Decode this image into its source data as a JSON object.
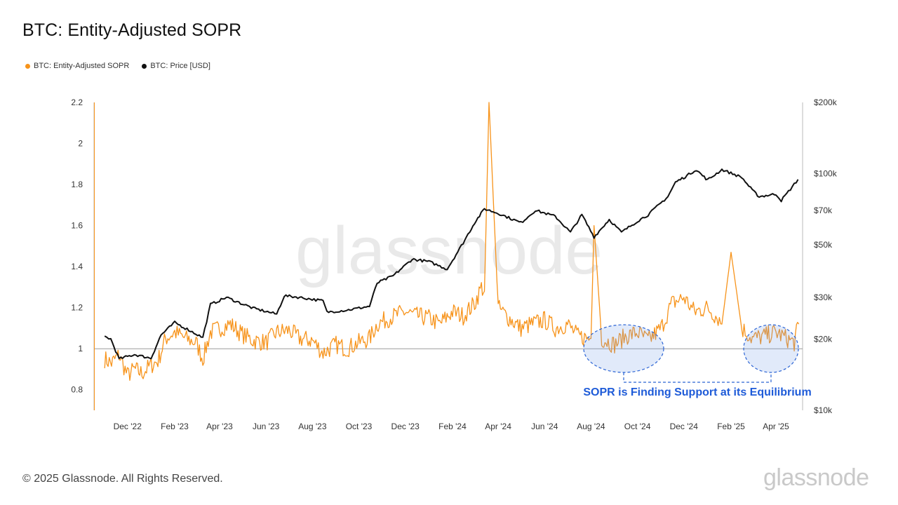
{
  "title": "BTC: Entity-Adjusted SOPR",
  "legend": [
    {
      "label": "BTC: Entity-Adjusted SOPR",
      "color": "#f7931a"
    },
    {
      "label": "BTC: Price [USD]",
      "color": "#111111"
    }
  ],
  "watermark": "glassnode",
  "annotation": "SOPR is Finding Support at its Equilibrium",
  "footer": "© 2025 Glassnode. All Rights Reserved.",
  "brand": "glassnode",
  "chart_data": {
    "type": "line",
    "title": "BTC: Entity-Adjusted SOPR",
    "x_ticks": [
      "Dec '22",
      "Feb '23",
      "Apr '23",
      "Jun '23",
      "Aug '23",
      "Oct '23",
      "Dec '23",
      "Feb '24",
      "Apr '24",
      "Jun '24",
      "Aug '24",
      "Oct '24",
      "Dec '24",
      "Feb '25",
      "Apr '25"
    ],
    "y_left": {
      "ticks": [
        "2.2",
        "2",
        "1.8",
        "1.6",
        "1.4",
        "1.2",
        "1",
        "0.8"
      ],
      "ylim": [
        0.7,
        2.2
      ],
      "reference_line": 1
    },
    "y_right": {
      "scale": "log",
      "ticks": [
        "$200k",
        "$100k",
        "$70k",
        "$50k",
        "$30k",
        "$20k",
        "$10k"
      ],
      "ylim": [
        10000,
        200000
      ]
    },
    "grid": false,
    "legend_position": "top-left",
    "series": [
      {
        "name": "BTC: Entity-Adjusted SOPR",
        "axis": "left",
        "color": "#f7931a",
        "x": [
          "2022-11-01",
          "2022-11-10",
          "2022-11-20",
          "2022-12-01",
          "2022-12-10",
          "2022-12-20",
          "2023-01-01",
          "2023-01-10",
          "2023-01-20",
          "2023-02-01",
          "2023-02-15",
          "2023-03-01",
          "2023-03-10",
          "2023-03-20",
          "2023-04-01",
          "2023-04-15",
          "2023-05-01",
          "2023-05-15",
          "2023-06-01",
          "2023-06-15",
          "2023-07-01",
          "2023-07-15",
          "2023-08-01",
          "2023-08-15",
          "2023-09-01",
          "2023-09-15",
          "2023-10-01",
          "2023-10-15",
          "2023-10-25",
          "2023-11-10",
          "2023-12-01",
          "2023-12-15",
          "2024-01-01",
          "2024-01-15",
          "2024-02-01",
          "2024-02-15",
          "2024-03-01",
          "2024-03-10",
          "2024-03-14",
          "2024-03-20",
          "2024-04-01",
          "2024-04-15",
          "2024-05-01",
          "2024-05-15",
          "2024-06-01",
          "2024-06-15",
          "2024-07-01",
          "2024-07-15",
          "2024-08-01",
          "2024-08-05",
          "2024-08-15",
          "2024-09-01",
          "2024-09-15",
          "2024-10-01",
          "2024-10-15",
          "2024-11-01",
          "2024-11-15",
          "2024-12-01",
          "2024-12-15",
          "2025-01-01",
          "2025-01-15",
          "2025-01-20",
          "2025-02-01",
          "2025-02-15",
          "2025-03-01",
          "2025-03-15",
          "2025-04-01",
          "2025-04-15",
          "2025-04-25",
          "2025-05-01"
        ],
        "y": [
          0.95,
          0.93,
          0.97,
          0.87,
          0.9,
          0.88,
          0.92,
          0.94,
          1.05,
          1.08,
          1.05,
          1.03,
          0.95,
          1.08,
          1.1,
          1.12,
          1.07,
          1.04,
          1.03,
          1.08,
          1.09,
          1.05,
          1.04,
          0.98,
          1.02,
          1.0,
          1.03,
          1.05,
          1.12,
          1.15,
          1.18,
          1.16,
          1.15,
          1.12,
          1.18,
          1.16,
          1.22,
          1.3,
          1.28,
          2.2,
          1.2,
          1.15,
          1.1,
          1.12,
          1.14,
          1.1,
          1.12,
          1.06,
          1.05,
          1.6,
          1.05,
          1.02,
          1.06,
          1.08,
          1.04,
          1.1,
          1.22,
          1.25,
          1.18,
          1.2,
          1.15,
          1.12,
          1.47,
          1.1,
          1.05,
          1.06,
          1.08,
          1.05,
          1.03,
          1.12
        ]
      },
      {
        "name": "BTC: Price [USD]",
        "axis": "right",
        "color": "#111111",
        "x": [
          "2022-11-01",
          "2022-11-09",
          "2022-11-20",
          "2022-12-10",
          "2023-01-01",
          "2023-01-14",
          "2023-02-01",
          "2023-03-10",
          "2023-03-20",
          "2023-04-10",
          "2023-05-15",
          "2023-06-15",
          "2023-06-25",
          "2023-07-15",
          "2023-08-15",
          "2023-08-20",
          "2023-09-15",
          "2023-10-15",
          "2023-10-25",
          "2023-11-15",
          "2023-12-10",
          "2024-01-01",
          "2024-01-25",
          "2024-02-15",
          "2024-03-01",
          "2024-03-14",
          "2024-04-01",
          "2024-05-01",
          "2024-05-20",
          "2024-06-15",
          "2024-07-05",
          "2024-07-20",
          "2024-08-05",
          "2024-08-25",
          "2024-09-10",
          "2024-10-01",
          "2024-10-15",
          "2024-11-10",
          "2024-11-20",
          "2024-12-05",
          "2024-12-17",
          "2025-01-01",
          "2025-01-20",
          "2025-02-15",
          "2025-03-01",
          "2025-03-10",
          "2025-04-01",
          "2025-04-08",
          "2025-04-20",
          "2025-04-30"
        ],
        "y": [
          20500,
          20000,
          16500,
          17200,
          16600,
          20800,
          23500,
          20300,
          28000,
          30000,
          27000,
          25500,
          30500,
          30000,
          29000,
          26000,
          26500,
          27500,
          34500,
          37000,
          43500,
          42500,
          39500,
          51000,
          62000,
          71000,
          68000,
          62000,
          70000,
          66000,
          56500,
          67000,
          54000,
          64000,
          56500,
          63000,
          67000,
          80000,
          92000,
          98000,
          104000,
          94000,
          104000,
          96500,
          85000,
          80000,
          82000,
          77000,
          86000,
          94500
        ]
      }
    ]
  }
}
